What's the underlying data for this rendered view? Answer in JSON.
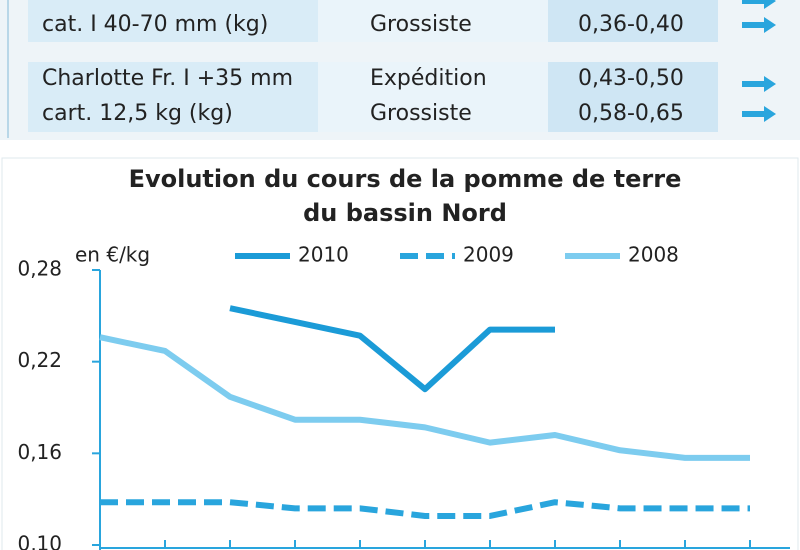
{
  "table": {
    "rows": [
      {
        "label": [
          "cat. I 40-70 mm (kg)"
        ],
        "stage": [
          "Grossiste"
        ],
        "price": [
          "0,36-0,40"
        ]
      },
      {
        "label": [
          "Charlotte Fr. I +35 mm",
          "cart. 12,5 kg (kg)"
        ],
        "stage": [
          "Expédition",
          "Grossiste"
        ],
        "price": [
          "0,43-0,50",
          "0,58-0,65"
        ]
      }
    ]
  },
  "chart_data": {
    "type": "line",
    "title": [
      "Evolution du cours de la pomme de terre",
      "du bassin Nord"
    ],
    "y_label": "en €/kg",
    "categories": [
      null,
      null,
      null,
      null,
      null,
      null,
      null,
      null,
      null,
      null,
      null
    ],
    "series": [
      {
        "name": "2010",
        "color": "#1b9bd7",
        "dash": false,
        "values": [
          null,
          null,
          0.255,
          0.246,
          0.237,
          0.202,
          0.241,
          0.241,
          null,
          null,
          null
        ]
      },
      {
        "name": "2009",
        "color": "#29a5dd",
        "dash": true,
        "values": [
          0.128,
          0.128,
          0.128,
          0.124,
          0.124,
          0.119,
          0.119,
          0.128,
          0.124,
          0.124,
          0.124
        ]
      },
      {
        "name": "2008",
        "color": "#7dccef",
        "dash": false,
        "values": [
          0.236,
          0.227,
          0.197,
          0.182,
          0.182,
          0.177,
          0.167,
          0.172,
          0.162,
          0.157,
          0.157
        ]
      }
    ],
    "ylim": [
      0.1,
      0.28
    ],
    "yticks": [
      {
        "value": 0.1,
        "label": "0,10"
      },
      {
        "value": 0.16,
        "label": "0,16"
      },
      {
        "value": 0.22,
        "label": "0,22"
      },
      {
        "value": 0.28,
        "label": "0,28"
      }
    ]
  }
}
